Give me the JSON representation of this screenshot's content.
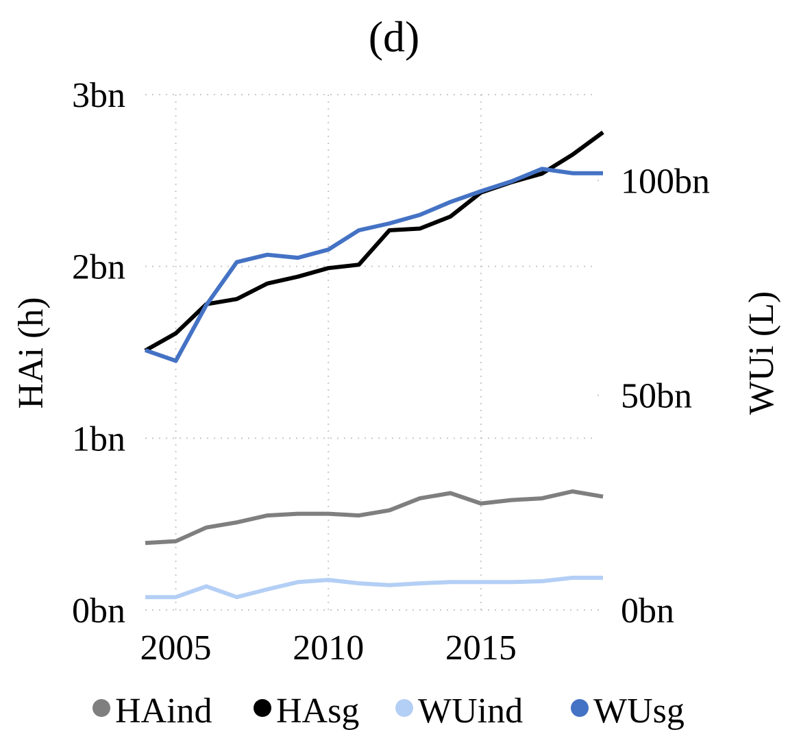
{
  "chart_data": {
    "type": "line",
    "title": "(d)",
    "ylabel": "HAi (h)",
    "y2label": "WUi (L)",
    "xlim": [
      2004,
      2019
    ],
    "ylim": [
      0,
      3
    ],
    "y2lim": [
      0,
      120
    ],
    "x_ticks": [
      2005,
      2010,
      2015
    ],
    "x_tick_labels": [
      "2005",
      "2010",
      "2015"
    ],
    "y_ticks": [
      0,
      1,
      2,
      3
    ],
    "y_tick_labels": [
      "0bn",
      "1bn",
      "2bn",
      "3bn"
    ],
    "y2_ticks": [
      0,
      50,
      100
    ],
    "y2_tick_labels": [
      "0bn",
      "50bn",
      "100bn"
    ],
    "grid": true,
    "legend_position": "bottom",
    "x": [
      2004,
      2005,
      2006,
      2007,
      2008,
      2009,
      2010,
      2011,
      2012,
      2013,
      2014,
      2015,
      2016,
      2017,
      2018,
      2019
    ],
    "series": [
      {
        "name": "HAind",
        "axis": "left",
        "color": "#7f7f7f",
        "values": [
          0.39,
          0.4,
          0.48,
          0.51,
          0.55,
          0.56,
          0.56,
          0.55,
          0.58,
          0.65,
          0.68,
          0.62,
          0.64,
          0.65,
          0.69,
          0.66
        ]
      },
      {
        "name": "HAsg",
        "axis": "left",
        "color": "#000000",
        "values": [
          1.51,
          1.61,
          1.78,
          1.81,
          1.9,
          1.94,
          1.99,
          2.01,
          2.21,
          2.22,
          2.29,
          2.43,
          2.49,
          2.54,
          2.65,
          2.78
        ]
      },
      {
        "name": "WUind",
        "axis": "right",
        "color": "#b4cff5",
        "values": [
          3.0,
          3.0,
          5.5,
          3.0,
          4.8,
          6.5,
          7.0,
          6.2,
          5.8,
          6.2,
          6.5,
          6.5,
          6.5,
          6.7,
          7.5,
          7.5
        ]
      },
      {
        "name": "WUsg",
        "axis": "right",
        "color": "#4472c4",
        "values": [
          60.5,
          58.0,
          71.0,
          81.0,
          82.7,
          82.0,
          83.9,
          88.4,
          90.0,
          92.0,
          95.0,
          97.5,
          99.8,
          102.7,
          101.7,
          101.7
        ]
      }
    ]
  }
}
